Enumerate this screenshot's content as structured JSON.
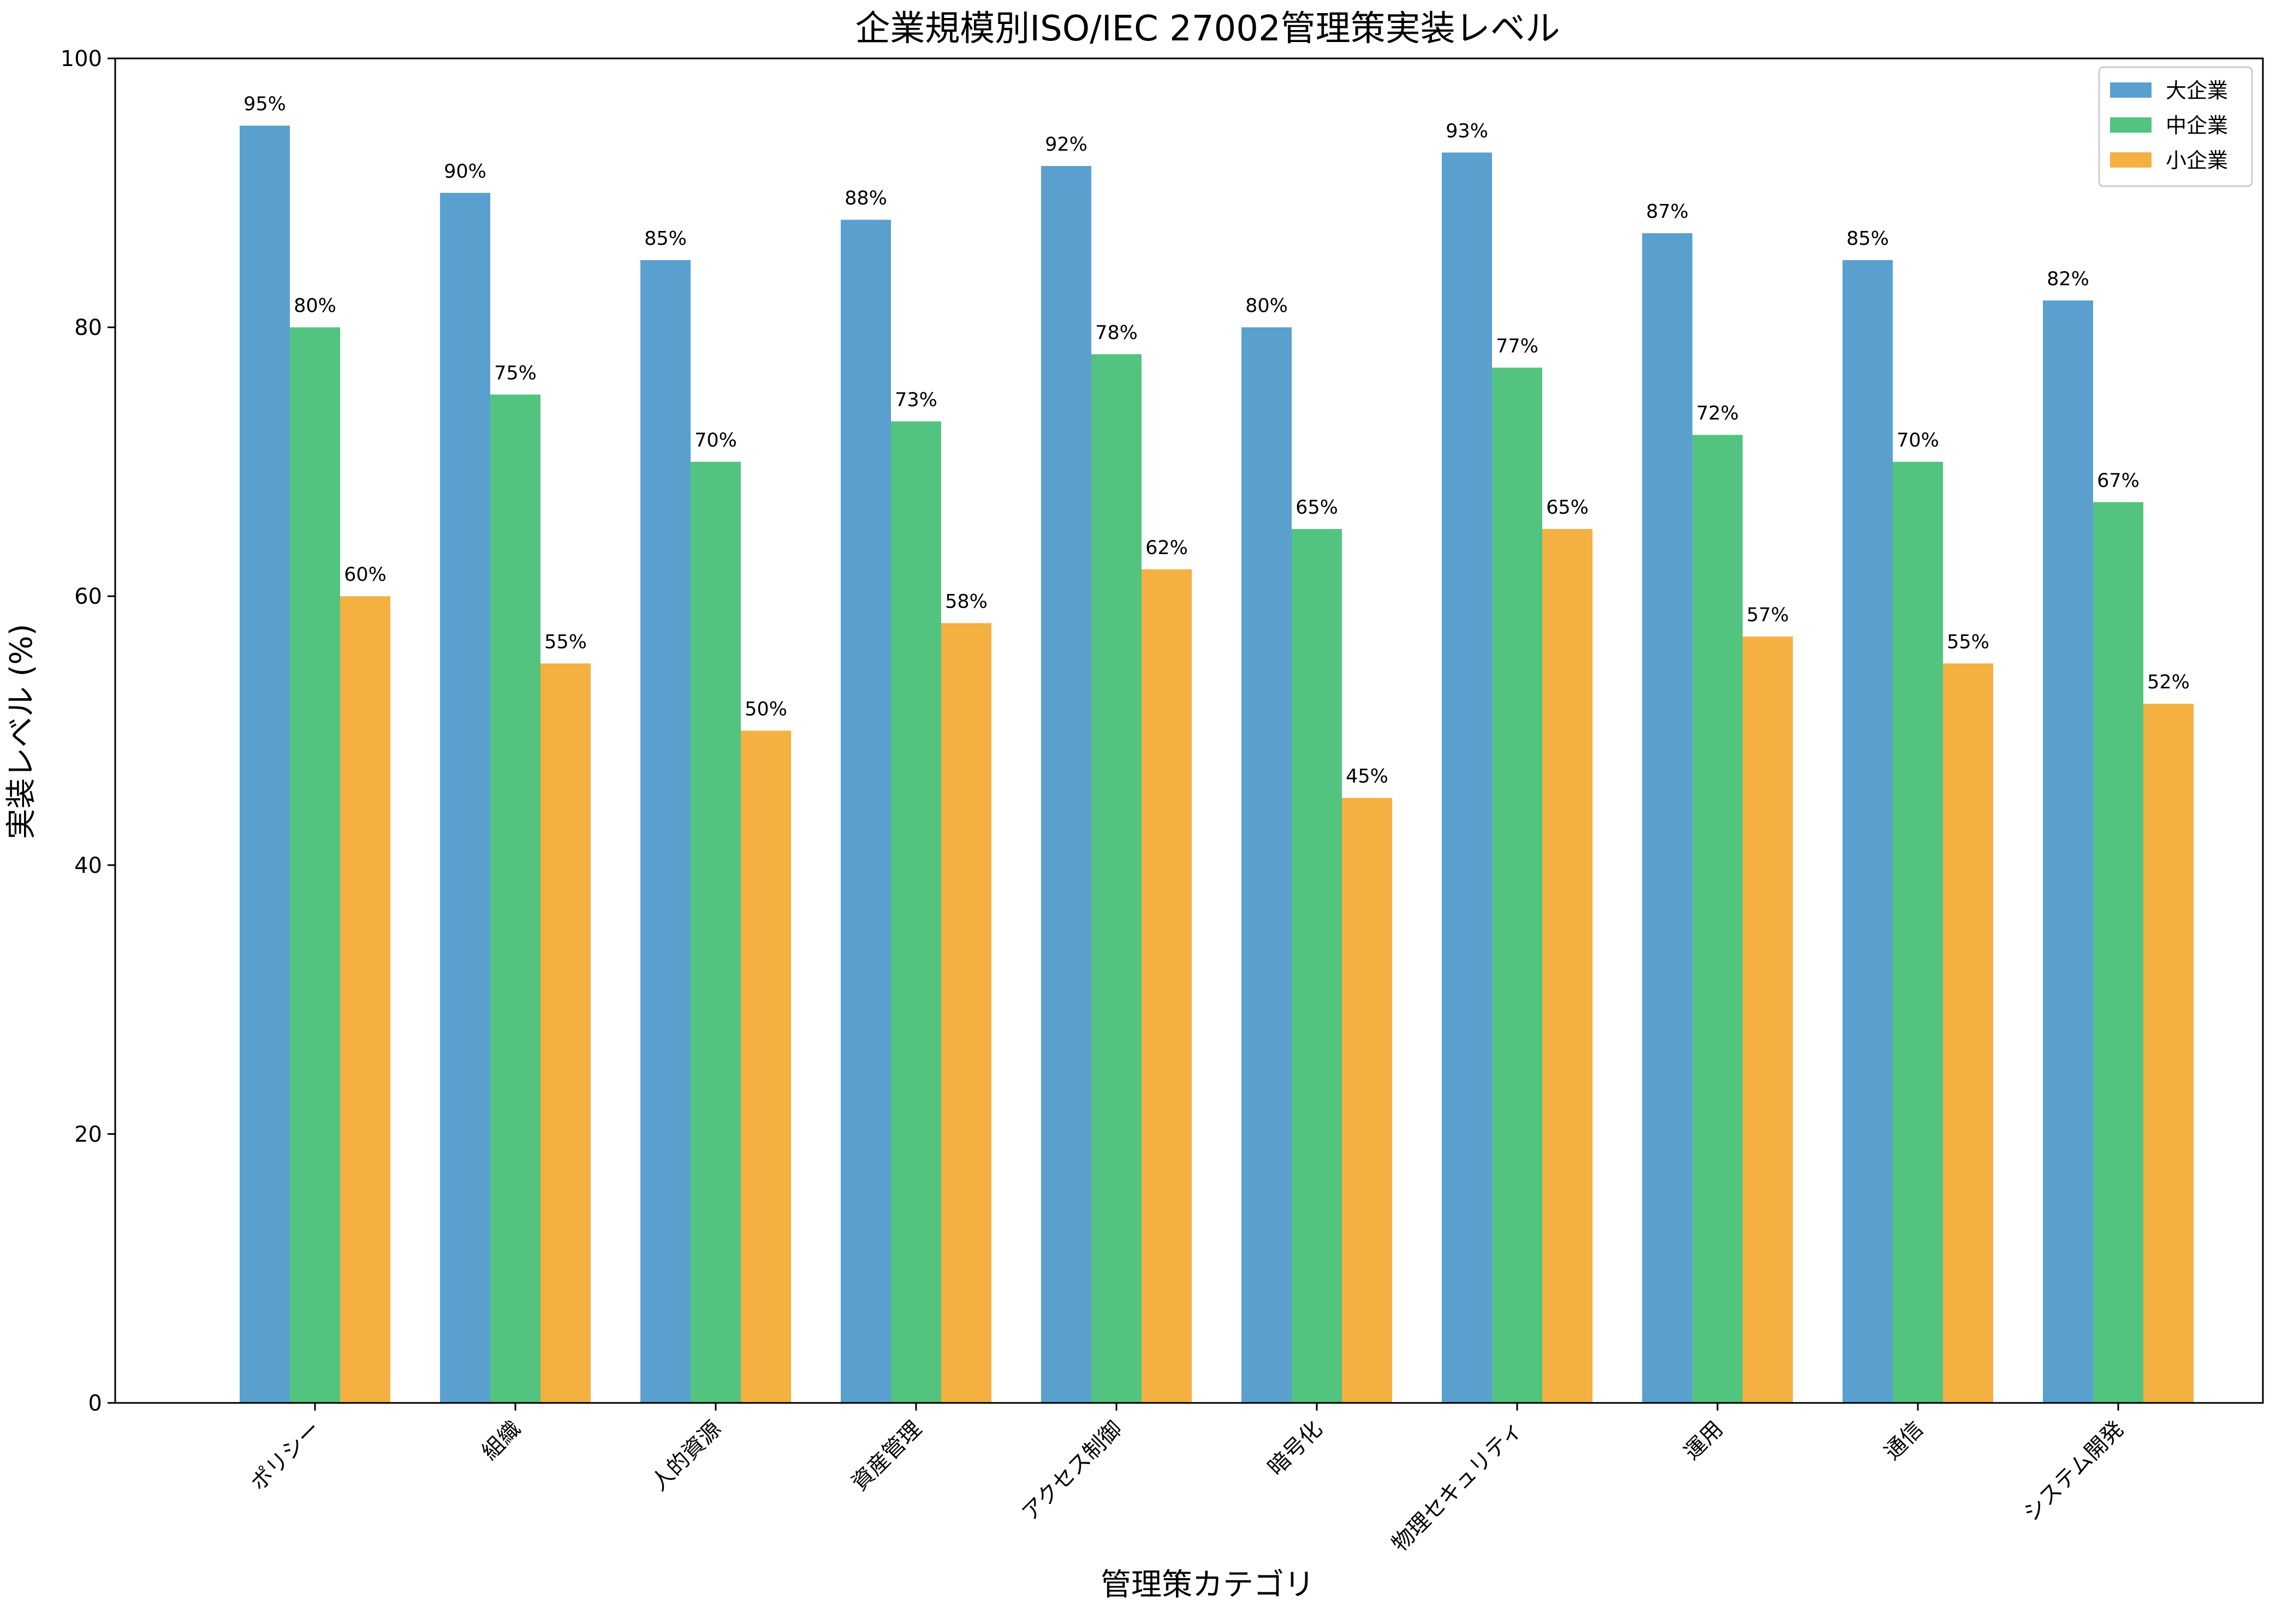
{
  "chart_data": {
    "type": "bar",
    "title": "企業規模別ISO/IEC 27002管理策実装レベル",
    "xlabel": "管理策カテゴリ",
    "ylabel": "実装レベル (%)",
    "ylim": [
      0,
      100
    ],
    "yticks": [
      "0",
      "20",
      "40",
      "60",
      "80",
      "100"
    ],
    "grid": false,
    "legend_position": "top-right",
    "categories": [
      "ポリシー",
      "組織",
      "人的資源",
      "資産管理",
      "アクセス制御",
      "暗号化",
      "物理セキュリティ",
      "運用",
      "通信",
      "システム開発"
    ],
    "series": [
      {
        "name": "大企業",
        "color": "#5aa0cf",
        "values": [
          95,
          90,
          85,
          88,
          92,
          80,
          93,
          87,
          85,
          82
        ],
        "labels": [
          "95%",
          "90%",
          "85%",
          "88%",
          "92%",
          "80%",
          "93%",
          "87%",
          "85%",
          "82%"
        ]
      },
      {
        "name": "中企業",
        "color": "#52c47f",
        "values": [
          80,
          75,
          70,
          73,
          78,
          65,
          77,
          72,
          70,
          67
        ],
        "labels": [
          "80%",
          "75%",
          "70%",
          "73%",
          "78%",
          "65%",
          "77%",
          "72%",
          "70%",
          "67%"
        ]
      },
      {
        "name": "小企業",
        "color": "#f5b042",
        "values": [
          60,
          55,
          50,
          58,
          62,
          45,
          65,
          57,
          55,
          52
        ],
        "labels": [
          "60%",
          "55%",
          "50%",
          "58%",
          "62%",
          "45%",
          "65%",
          "57%",
          "55%",
          "52%"
        ]
      }
    ]
  }
}
